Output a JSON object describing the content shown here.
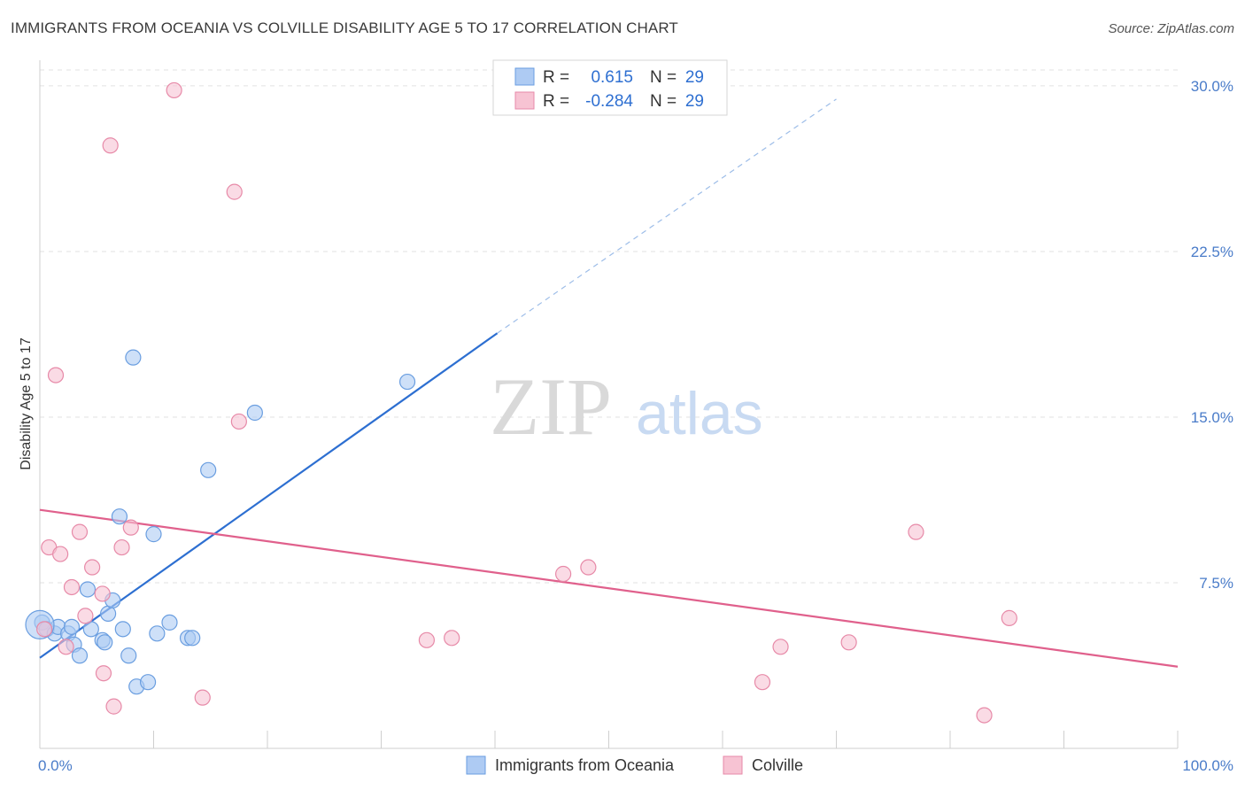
{
  "header": {
    "title": "IMMIGRANTS FROM OCEANIA VS COLVILLE DISABILITY AGE 5 TO 17 CORRELATION CHART",
    "source": "Source: ZipAtlas.com"
  },
  "watermark": {
    "zip": "ZIP",
    "atlas": "atlas"
  },
  "legend_box": {
    "rows": [
      {
        "r_label": "R =",
        "r_value": "0.615",
        "n_label": "N =",
        "n_value": "29"
      },
      {
        "r_label": "R =",
        "r_value": "-0.284",
        "n_label": "N =",
        "n_value": "29"
      }
    ]
  },
  "colors": {
    "blue_fill": "#aecbf3",
    "blue_stroke": "#6a9ee0",
    "blue_line": "#2d6fd1",
    "pink_fill": "#f7c3d3",
    "pink_stroke": "#e78aa8",
    "pink_line": "#e0608c",
    "axis_text": "#4a7cc9",
    "grid": "#e2e2e2"
  },
  "chart_data": {
    "type": "scatter",
    "title": "IMMIGRANTS FROM OCEANIA VS COLVILLE DISABILITY AGE 5 TO 17 CORRELATION CHART",
    "xlabel": "",
    "ylabel": "Disability Age 5 to 17",
    "xlim": [
      0,
      100
    ],
    "ylim": [
      0,
      31
    ],
    "x_tick_labels": [
      "0.0%",
      "100.0%"
    ],
    "y_ticks": [
      7.5,
      15.0,
      22.5,
      30.0
    ],
    "y_tick_labels": [
      "7.5%",
      "15.0%",
      "22.5%",
      "30.0%"
    ],
    "grid": true,
    "legend_placement": "bottom",
    "series": [
      {
        "name": "Immigrants from Oceania",
        "color": "#aecbf3",
        "points": [
          [
            0.2,
            5.7
          ],
          [
            0.6,
            5.4
          ],
          [
            1.3,
            5.2
          ],
          [
            1.6,
            5.5
          ],
          [
            2.5,
            5.2
          ],
          [
            2.8,
            5.5
          ],
          [
            3.0,
            4.7
          ],
          [
            3.5,
            4.2
          ],
          [
            4.2,
            7.2
          ],
          [
            4.5,
            5.4
          ],
          [
            5.5,
            4.9
          ],
          [
            5.7,
            4.8
          ],
          [
            6.0,
            6.1
          ],
          [
            6.4,
            6.7
          ],
          [
            7.0,
            10.5
          ],
          [
            7.3,
            5.4
          ],
          [
            7.8,
            4.2
          ],
          [
            8.2,
            17.7
          ],
          [
            8.5,
            2.8
          ],
          [
            9.5,
            3.0
          ],
          [
            10.0,
            9.7
          ],
          [
            10.3,
            5.2
          ],
          [
            11.4,
            5.7
          ],
          [
            13.0,
            5.0
          ],
          [
            13.4,
            5.0
          ],
          [
            14.8,
            12.6
          ],
          [
            18.9,
            15.2
          ],
          [
            32.3,
            16.6
          ],
          [
            0.0,
            5.6
          ]
        ],
        "trend": {
          "from": [
            0,
            4.1
          ],
          "to": [
            40.2,
            18.8
          ],
          "dashed_to": [
            70.0,
            29.4
          ]
        }
      },
      {
        "name": "Colville",
        "color": "#f7c3d3",
        "points": [
          [
            0.4,
            5.4
          ],
          [
            0.8,
            9.1
          ],
          [
            1.4,
            16.9
          ],
          [
            1.8,
            8.8
          ],
          [
            2.3,
            4.6
          ],
          [
            2.8,
            7.3
          ],
          [
            3.5,
            9.8
          ],
          [
            4.0,
            6.0
          ],
          [
            4.6,
            8.2
          ],
          [
            5.5,
            7.0
          ],
          [
            5.6,
            3.4
          ],
          [
            6.2,
            27.3
          ],
          [
            6.5,
            1.9
          ],
          [
            7.2,
            9.1
          ],
          [
            8.0,
            10.0
          ],
          [
            11.8,
            29.8
          ],
          [
            14.3,
            2.3
          ],
          [
            17.1,
            25.2
          ],
          [
            17.5,
            14.8
          ],
          [
            34.0,
            4.9
          ],
          [
            36.2,
            5.0
          ],
          [
            46.0,
            7.9
          ],
          [
            48.2,
            8.2
          ],
          [
            63.5,
            3.0
          ],
          [
            65.1,
            4.6
          ],
          [
            71.1,
            4.8
          ],
          [
            77.0,
            9.8
          ],
          [
            83.0,
            1.5
          ],
          [
            85.2,
            5.9
          ]
        ],
        "trend": {
          "from": [
            0,
            10.8
          ],
          "to": [
            100,
            3.7
          ]
        }
      }
    ]
  }
}
